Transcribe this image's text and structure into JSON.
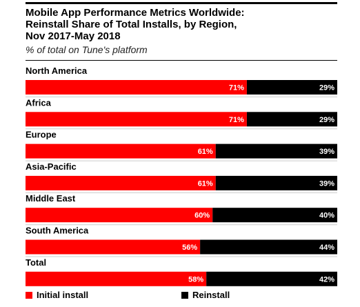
{
  "header": {
    "title": "Mobile App Performance Metrics Worldwide:\nReinstall Share of Total Installs, by Region,\nNov 2017-May 2018",
    "subtitle": "% of total on Tune's platform"
  },
  "legend": {
    "initial_label": "Initial install",
    "reinstall_label": "Reinstall"
  },
  "colors": {
    "initial": "#ff0000",
    "reinstall": "#000000",
    "divider": "#cccccc"
  },
  "chart_data": {
    "type": "bar",
    "orientation": "horizontal",
    "stacked": true,
    "title": "Mobile App Performance Metrics Worldwide: Reinstall Share of Total Installs, by Region, Nov 2017-May 2018",
    "subtitle": "% of total on Tune's platform",
    "categories": [
      "North America",
      "Africa",
      "Europe",
      "Asia-Pacific",
      "Middle East",
      "South America",
      "Total"
    ],
    "series": [
      {
        "name": "Initial install",
        "values": [
          71,
          71,
          61,
          61,
          60,
          56,
          58
        ],
        "labels": [
          "71%",
          "71%",
          "61%",
          "61%",
          "60%",
          "56%",
          "58%"
        ]
      },
      {
        "name": "Reinstall",
        "values": [
          29,
          29,
          39,
          39,
          40,
          44,
          42
        ],
        "labels": [
          "29%",
          "29%",
          "39%",
          "39%",
          "40%",
          "44%",
          "42%"
        ]
      }
    ],
    "xlim": [
      0,
      100
    ],
    "grid": false,
    "legend_position": "bottom"
  }
}
